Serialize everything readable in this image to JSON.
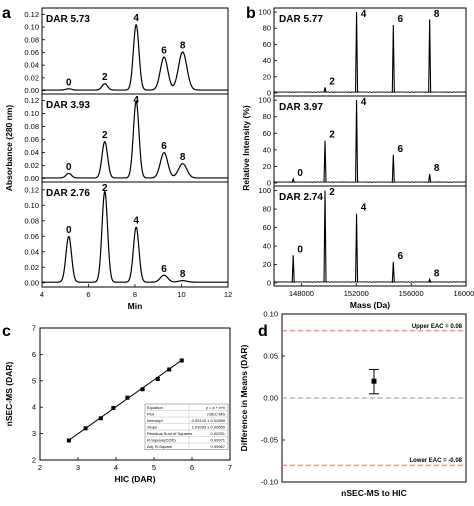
{
  "chart_data": [
    {
      "panel": "a",
      "type": "line",
      "xlabel": "Min",
      "ylabel": "Absorbance (280 nm)",
      "xlim": [
        4,
        12
      ],
      "x_ticks": [
        "4",
        "6",
        "8",
        "10",
        "12"
      ],
      "subplots": [
        {
          "dar_label": "DAR 5.73",
          "ylim": [
            0,
            0.13
          ],
          "y_ticks": [
            "0.00",
            "0.02",
            "0.04",
            "0.06",
            "0.08",
            "0.10",
            "0.12"
          ],
          "peaks": [
            {
              "label": "0",
              "x": 5.15,
              "y": 0.002
            },
            {
              "label": "2",
              "x": 6.7,
              "y": 0.01
            },
            {
              "label": "4",
              "x": 8.05,
              "y": 0.103
            },
            {
              "label": "6",
              "x": 9.25,
              "y": 0.052
            },
            {
              "label": "8",
              "x": 10.05,
              "y": 0.06
            }
          ]
        },
        {
          "dar_label": "DAR 3.93",
          "ylim": [
            0,
            0.13
          ],
          "y_ticks": [
            "0.00",
            "0.02",
            "0.04",
            "0.06",
            "0.08",
            "0.10",
            "0.12"
          ],
          "peaks": [
            {
              "label": "0",
              "x": 5.15,
              "y": 0.007
            },
            {
              "label": "2",
              "x": 6.7,
              "y": 0.056
            },
            {
              "label": "4",
              "x": 8.05,
              "y": 0.118
            },
            {
              "label": "6",
              "x": 9.25,
              "y": 0.039
            },
            {
              "label": "8",
              "x": 10.05,
              "y": 0.022
            }
          ]
        },
        {
          "dar_label": "DAR 2.76",
          "ylim": [
            0,
            0.13
          ],
          "y_ticks": [
            "0.00",
            "0.02",
            "0.04",
            "0.06",
            "0.08",
            "0.10",
            "0.12"
          ],
          "peaks": [
            {
              "label": "0",
              "x": 5.15,
              "y": 0.059
            },
            {
              "label": "2",
              "x": 6.7,
              "y": 0.117
            },
            {
              "label": "4",
              "x": 8.05,
              "y": 0.071
            },
            {
              "label": "6",
              "x": 9.25,
              "y": 0.009
            },
            {
              "label": "8",
              "x": 10.05,
              "y": 0.002
            }
          ]
        }
      ]
    },
    {
      "panel": "b",
      "type": "line",
      "xlabel": "Mass (Da)",
      "ylabel": "Relative Intensity (%)",
      "xlim": [
        146000,
        160000
      ],
      "x_ticks": [
        "148000",
        "152000",
        "156000",
        "160000"
      ],
      "subplots": [
        {
          "dar_label": "DAR 5.77",
          "ylim": [
            0,
            105
          ],
          "y_ticks": [
            "0",
            "20",
            "40",
            "60",
            "80",
            "100"
          ],
          "peaks": [
            {
              "label": "2",
              "x": 149720,
              "y": 7
            },
            {
              "label": "4",
              "x": 152020,
              "y": 100
            },
            {
              "label": "6",
              "x": 154700,
              "y": 84
            },
            {
              "label": "8",
              "x": 157350,
              "y": 91
            }
          ]
        },
        {
          "dar_label": "DAR 3.97",
          "ylim": [
            0,
            105
          ],
          "y_ticks": [
            "0",
            "20",
            "40",
            "60",
            "80",
            "100"
          ],
          "peaks": [
            {
              "label": "0",
              "x": 147400,
              "y": 5
            },
            {
              "label": "2",
              "x": 149720,
              "y": 51
            },
            {
              "label": "4",
              "x": 152020,
              "y": 100
            },
            {
              "label": "6",
              "x": 154700,
              "y": 34
            },
            {
              "label": "8",
              "x": 157350,
              "y": 11
            }
          ]
        },
        {
          "dar_label": "DAR 2.74",
          "ylim": [
            0,
            105
          ],
          "y_ticks": [
            "0",
            "20",
            "40",
            "60",
            "80",
            "100"
          ],
          "peaks": [
            {
              "label": "0",
              "x": 147400,
              "y": 30
            },
            {
              "label": "2",
              "x": 149720,
              "y": 100
            },
            {
              "label": "4",
              "x": 152020,
              "y": 75
            },
            {
              "label": "6",
              "x": 154700,
              "y": 23
            },
            {
              "label": "8",
              "x": 157350,
              "y": 4
            }
          ]
        }
      ]
    },
    {
      "panel": "c",
      "type": "scatter",
      "xlabel": "HIC (DAR)",
      "ylabel": "nSEC-MS (DAR)",
      "xlim": [
        2,
        7
      ],
      "ylim": [
        2,
        7
      ],
      "x_ticks": [
        "2",
        "3",
        "4",
        "5",
        "6",
        "7"
      ],
      "y_ticks": [
        "2",
        "3",
        "4",
        "5",
        "6",
        "7"
      ],
      "points": [
        {
          "x": 2.76,
          "y": 2.74
        },
        {
          "x": 3.2,
          "y": 3.2
        },
        {
          "x": 3.6,
          "y": 3.58
        },
        {
          "x": 3.93,
          "y": 3.97
        },
        {
          "x": 4.3,
          "y": 4.36
        },
        {
          "x": 4.7,
          "y": 4.68
        },
        {
          "x": 5.1,
          "y": 5.07
        },
        {
          "x": 5.4,
          "y": 5.43
        },
        {
          "x": 5.73,
          "y": 5.77
        }
      ],
      "fit": {
        "x0": 2.76,
        "y0": 2.75,
        "x1": 5.73,
        "y1": 5.78
      },
      "fit_table": [
        [
          "Equation",
          "y = a + b*x"
        ],
        [
          "Plot",
          "nSEC-MS"
        ],
        [
          "Intercept",
          "-0.05143 ± 0.02899"
        ],
        [
          "Slope",
          "1.01093 ± 0.00655"
        ],
        [
          "Residual Sum of Squares",
          "0.00251"
        ],
        [
          "R-Square(COD)",
          "0.99971"
        ],
        [
          "Adj. R-Square",
          "0.99967"
        ]
      ]
    },
    {
      "panel": "d",
      "type": "scatter",
      "xlabel": "nSEC-MS to HIC",
      "ylabel": "Difference in Means (DAR)",
      "ylim": [
        -0.1,
        0.1
      ],
      "y_ticks": [
        "0.10",
        "0.05",
        "0.00",
        "-0.05",
        "-0.10"
      ],
      "point": {
        "y": 0.02,
        "err_low": 0.005,
        "err_high": 0.034
      },
      "upper_eac": {
        "label": "Upper EAC = 0.08",
        "y": 0.08
      },
      "lower_eac": {
        "label": "Lower EAC = -0.08",
        "y": -0.08
      },
      "zero_line": 0,
      "colors": {
        "eac": "#e07050",
        "zero": "#909090"
      }
    }
  ]
}
